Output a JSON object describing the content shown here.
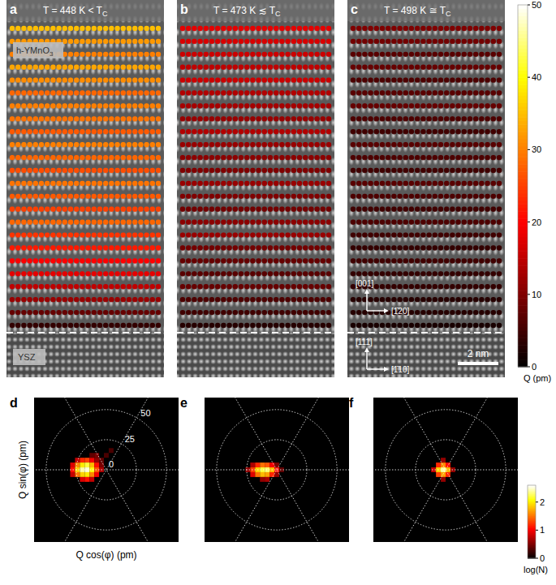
{
  "chart_data": [
    {
      "type": "heatmap",
      "panels": [
        {
          "letter": "a",
          "title": {
            "prefix": "T = 448 K < T",
            "sub": "C"
          },
          "row_values": [
            35,
            32,
            30,
            33,
            31,
            28,
            30,
            29,
            27,
            30,
            28,
            26,
            29,
            27,
            25,
            28,
            24,
            22,
            20,
            18,
            15,
            12,
            8,
            4
          ]
        },
        {
          "letter": "b",
          "title": {
            "prefix": "T = 473 K ≲ T",
            "sub": "C"
          },
          "row_values": [
            18,
            17,
            16,
            15,
            16,
            14,
            13,
            12,
            14,
            12,
            11,
            10,
            12,
            10,
            9,
            11,
            12,
            9,
            8,
            7,
            8,
            6,
            5,
            3
          ]
        },
        {
          "letter": "c",
          "title": {
            "prefix": "T = 498 K ≅ T",
            "sub": "C"
          },
          "row_values": [
            10,
            9,
            7,
            8,
            6,
            7,
            8,
            6,
            5,
            7,
            6,
            5,
            7,
            6,
            5,
            6,
            5,
            4,
            5,
            4,
            4,
            3,
            3,
            2
          ]
        }
      ],
      "film_label": {
        "text": "h-YMnO",
        "sub": "3"
      },
      "substrate_label": "YSZ",
      "film_axes": [
        "[001]",
        "[1̄20]"
      ],
      "substrate_axes": [
        "[111]",
        "[1̄10]"
      ],
      "scale_bar": "2 nm",
      "colorbar": {
        "label": "Q (pm)",
        "range": [
          0,
          50
        ],
        "ticks": [
          0,
          10,
          20,
          30,
          40,
          50
        ]
      }
    },
    {
      "type": "histogram2d",
      "bin": 4,
      "xlim": [
        -60,
        60
      ],
      "ylim": [
        -60,
        60
      ],
      "rings": [
        25,
        50
      ],
      "ring_labels": [
        0,
        25,
        50
      ],
      "xlabel": "Q cos(φ) (pm)",
      "ylabel": "Q sin(φ) (pm)",
      "panels": [
        {
          "letter": "d",
          "cells": [
            [
              -24,
              8,
              0.8
            ],
            [
              -20,
              8,
              1.2
            ],
            [
              -16,
              8,
              1.3
            ],
            [
              -12,
              8,
              1.0
            ],
            [
              -8,
              8,
              0.6
            ],
            [
              -28,
              4,
              0.9
            ],
            [
              -24,
              4,
              1.6
            ],
            [
              -20,
              4,
              2.0
            ],
            [
              -16,
              4,
              2.2
            ],
            [
              -12,
              4,
              1.8
            ],
            [
              -8,
              4,
              1.1
            ],
            [
              -4,
              4,
              0.5
            ],
            [
              -28,
              0,
              1.1
            ],
            [
              -24,
              0,
              1.9
            ],
            [
              -20,
              0,
              2.4
            ],
            [
              -16,
              0,
              2.5
            ],
            [
              -12,
              0,
              2.1
            ],
            [
              -8,
              0,
              1.4
            ],
            [
              -4,
              0,
              0.7
            ],
            [
              -28,
              -4,
              0.8
            ],
            [
              -24,
              -4,
              1.5
            ],
            [
              -20,
              -4,
              1.9
            ],
            [
              -16,
              -4,
              2.0
            ],
            [
              -12,
              -4,
              1.6
            ],
            [
              -8,
              -4,
              1.0
            ],
            [
              -20,
              -8,
              0.9
            ],
            [
              -16,
              -8,
              1.1
            ],
            [
              -12,
              -8,
              0.8
            ],
            [
              -4,
              8,
              0.4
            ],
            [
              0,
              12,
              0.3
            ],
            [
              -8,
              12,
              0.5
            ],
            [
              4,
              16,
              0.3
            ],
            [
              -12,
              12,
              0.4
            ]
          ]
        },
        {
          "letter": "e",
          "cells": [
            [
              -20,
              4,
              0.7
            ],
            [
              -16,
              4,
              1.2
            ],
            [
              -12,
              4,
              1.5
            ],
            [
              -8,
              4,
              1.4
            ],
            [
              -4,
              4,
              1.0
            ],
            [
              0,
              4,
              0.5
            ],
            [
              -24,
              0,
              0.6
            ],
            [
              -20,
              0,
              1.3
            ],
            [
              -16,
              0,
              1.9
            ],
            [
              -12,
              0,
              2.2
            ],
            [
              -8,
              0,
              2.3
            ],
            [
              -4,
              0,
              1.8
            ],
            [
              0,
              0,
              1.1
            ],
            [
              4,
              0,
              0.4
            ],
            [
              -20,
              -4,
              0.9
            ],
            [
              -16,
              -4,
              1.5
            ],
            [
              -12,
              -4,
              1.8
            ],
            [
              -8,
              -4,
              1.7
            ],
            [
              -4,
              -4,
              1.2
            ],
            [
              0,
              -4,
              0.6
            ],
            [
              -12,
              -8,
              0.6
            ],
            [
              -8,
              -8,
              0.7
            ]
          ]
        },
        {
          "letter": "f",
          "cells": [
            [
              -6,
              4,
              1.2
            ],
            [
              -2,
              4,
              1.6
            ],
            [
              2,
              4,
              1.1
            ],
            [
              -10,
              0,
              0.8
            ],
            [
              -6,
              0,
              1.9
            ],
            [
              -2,
              0,
              2.4
            ],
            [
              2,
              0,
              1.8
            ],
            [
              6,
              0,
              0.6
            ],
            [
              -6,
              -4,
              1.3
            ],
            [
              -2,
              -4,
              1.7
            ],
            [
              2,
              -4,
              1.2
            ],
            [
              -2,
              8,
              0.6
            ],
            [
              -2,
              -8,
              0.6
            ]
          ]
        }
      ],
      "colorbar": {
        "label": "log(N)",
        "range": [
          0,
          2.6
        ],
        "ticks": [
          0,
          1,
          2
        ]
      }
    }
  ]
}
